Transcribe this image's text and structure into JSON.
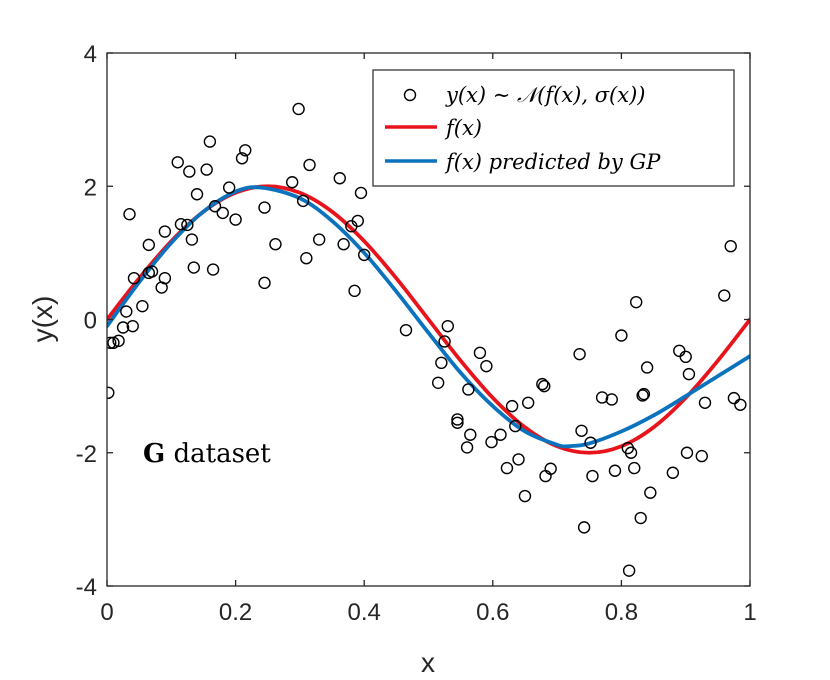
{
  "chart_data": {
    "type": "scatter",
    "xlabel": "x",
    "ylabel": "y(x)",
    "xlim": [
      0,
      1
    ],
    "ylim": [
      -4,
      4
    ],
    "xticks": [
      "0",
      "0.2",
      "0.4",
      "0.6",
      "0.8",
      "1"
    ],
    "yticks": [
      "-4",
      "-2",
      "0",
      "2",
      "4"
    ],
    "annotation": {
      "bold": "G",
      "rest": " dataset"
    },
    "legend": {
      "placement": "top-right",
      "entries": [
        "y(x) ∼ 𝒩(f(x), σ(x))",
        "f(x)",
        "f(x) predicted by GP"
      ]
    },
    "series": [
      {
        "name": "y(x) ∼ 𝒩(f(x), σ(x))",
        "kind": "markers",
        "marker": "circle",
        "color": "#000000",
        "points": [
          [
            0.002,
            -1.1
          ],
          [
            0.005,
            -0.35
          ],
          [
            0.01,
            -0.35
          ],
          [
            0.018,
            -0.32
          ],
          [
            0.025,
            -0.12
          ],
          [
            0.03,
            0.12
          ],
          [
            0.035,
            1.58
          ],
          [
            0.04,
            -0.1
          ],
          [
            0.042,
            0.62
          ],
          [
            0.055,
            0.2
          ],
          [
            0.065,
            0.7
          ],
          [
            0.065,
            1.12
          ],
          [
            0.07,
            0.72
          ],
          [
            0.085,
            0.48
          ],
          [
            0.09,
            0.62
          ],
          [
            0.09,
            1.32
          ],
          [
            0.11,
            2.36
          ],
          [
            0.115,
            1.43
          ],
          [
            0.125,
            1.42
          ],
          [
            0.128,
            2.22
          ],
          [
            0.132,
            1.2
          ],
          [
            0.135,
            0.78
          ],
          [
            0.14,
            1.88
          ],
          [
            0.155,
            2.25
          ],
          [
            0.16,
            2.67
          ],
          [
            0.165,
            0.75
          ],
          [
            0.168,
            1.7
          ],
          [
            0.18,
            1.6
          ],
          [
            0.19,
            1.98
          ],
          [
            0.2,
            1.5
          ],
          [
            0.21,
            2.42
          ],
          [
            0.215,
            2.54
          ],
          [
            0.245,
            1.68
          ],
          [
            0.245,
            0.55
          ],
          [
            0.262,
            1.13
          ],
          [
            0.288,
            2.06
          ],
          [
            0.298,
            3.16
          ],
          [
            0.305,
            1.78
          ],
          [
            0.31,
            0.92
          ],
          [
            0.315,
            2.32
          ],
          [
            0.33,
            1.2
          ],
          [
            0.362,
            2.12
          ],
          [
            0.368,
            1.13
          ],
          [
            0.38,
            1.4
          ],
          [
            0.385,
            0.43
          ],
          [
            0.39,
            1.48
          ],
          [
            0.395,
            1.9
          ],
          [
            0.4,
            0.97
          ],
          [
            0.465,
            -0.16
          ],
          [
            0.515,
            -0.95
          ],
          [
            0.52,
            -0.65
          ],
          [
            0.525,
            -0.33
          ],
          [
            0.53,
            -0.1
          ],
          [
            0.545,
            -1.5
          ],
          [
            0.545,
            -1.55
          ],
          [
            0.56,
            -1.92
          ],
          [
            0.562,
            -1.05
          ],
          [
            0.565,
            -1.73
          ],
          [
            0.58,
            -0.5
          ],
          [
            0.59,
            -0.7
          ],
          [
            0.598,
            -1.84
          ],
          [
            0.612,
            -1.73
          ],
          [
            0.622,
            -2.23
          ],
          [
            0.63,
            -1.3
          ],
          [
            0.635,
            -1.6
          ],
          [
            0.64,
            -2.1
          ],
          [
            0.65,
            -2.65
          ],
          [
            0.655,
            -1.25
          ],
          [
            0.677,
            -0.97
          ],
          [
            0.68,
            -1.0
          ],
          [
            0.682,
            -2.35
          ],
          [
            0.69,
            -2.24
          ],
          [
            0.735,
            -0.52
          ],
          [
            0.738,
            -1.67
          ],
          [
            0.742,
            -3.12
          ],
          [
            0.752,
            -1.85
          ],
          [
            0.755,
            -2.35
          ],
          [
            0.77,
            -1.17
          ],
          [
            0.785,
            -1.2
          ],
          [
            0.79,
            -2.27
          ],
          [
            0.8,
            -0.24
          ],
          [
            0.81,
            -1.93
          ],
          [
            0.812,
            -3.77
          ],
          [
            0.815,
            -2.0
          ],
          [
            0.82,
            -2.23
          ],
          [
            0.823,
            0.26
          ],
          [
            0.83,
            -2.98
          ],
          [
            0.833,
            -1.14
          ],
          [
            0.835,
            -1.12
          ],
          [
            0.84,
            -0.72
          ],
          [
            0.845,
            -2.6
          ],
          [
            0.88,
            -2.3
          ],
          [
            0.89,
            -0.47
          ],
          [
            0.9,
            -0.56
          ],
          [
            0.902,
            -2.0
          ],
          [
            0.905,
            -0.82
          ],
          [
            0.925,
            -2.05
          ],
          [
            0.93,
            -1.25
          ],
          [
            0.96,
            0.36
          ],
          [
            0.97,
            1.1
          ],
          [
            0.975,
            -1.18
          ],
          [
            0.985,
            -1.28
          ]
        ]
      },
      {
        "name": "f(x)",
        "kind": "line",
        "color": "#e8141c",
        "x": [
          0,
          0.05,
          0.1,
          0.15,
          0.2,
          0.25,
          0.3,
          0.35,
          0.4,
          0.45,
          0.5,
          0.55,
          0.6,
          0.65,
          0.7,
          0.75,
          0.8,
          0.85,
          0.9,
          0.95,
          1.0
        ],
        "y": [
          0,
          0.618,
          1.176,
          1.618,
          1.902,
          2.0,
          1.902,
          1.618,
          1.176,
          0.618,
          0,
          -0.618,
          -1.176,
          -1.618,
          -1.902,
          -2.0,
          -1.902,
          -1.618,
          -1.176,
          -0.618,
          0
        ]
      },
      {
        "name": "f(x) predicted by GP",
        "kind": "line",
        "color": "#0b72bd",
        "x": [
          0,
          0.05,
          0.1,
          0.15,
          0.2,
          0.24,
          0.3,
          0.35,
          0.4,
          0.45,
          0.5,
          0.55,
          0.6,
          0.65,
          0.7,
          0.72,
          0.75,
          0.8,
          0.85,
          0.9,
          0.95,
          1.0
        ],
        "y": [
          -0.1,
          0.56,
          1.15,
          1.62,
          1.92,
          1.98,
          1.82,
          1.48,
          1.0,
          0.42,
          -0.2,
          -0.8,
          -1.3,
          -1.68,
          -1.88,
          -1.9,
          -1.86,
          -1.68,
          -1.44,
          -1.15,
          -0.85,
          -0.55
        ]
      }
    ]
  }
}
